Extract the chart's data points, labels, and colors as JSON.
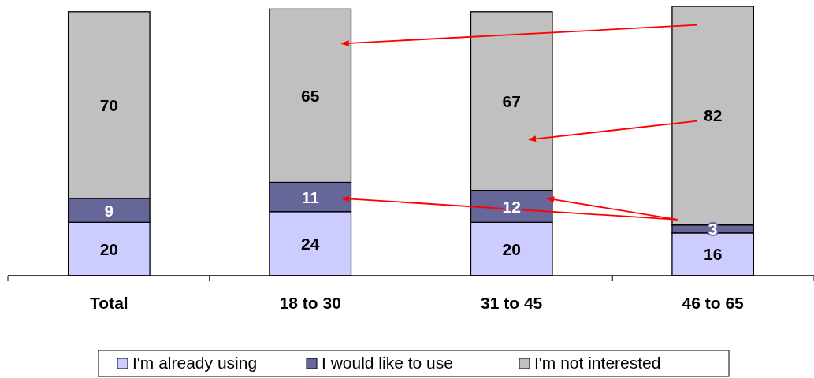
{
  "chart_data": {
    "type": "bar",
    "stacked": true,
    "data_labels": true,
    "legend": "bottom",
    "categories": [
      "Total",
      "18 to 30",
      "31 to 45",
      "46 to 65"
    ],
    "series": [
      {
        "name": "I'm already using",
        "color": "#ccccff",
        "values": [
          20,
          24,
          20,
          16
        ]
      },
      {
        "name": "I would like to use",
        "color": "#666699",
        "values": [
          9,
          11,
          12,
          3
        ]
      },
      {
        "name": "I'm not interested",
        "color": "#c0c0c0",
        "values": [
          70,
          65,
          67,
          82
        ]
      }
    ]
  }
}
